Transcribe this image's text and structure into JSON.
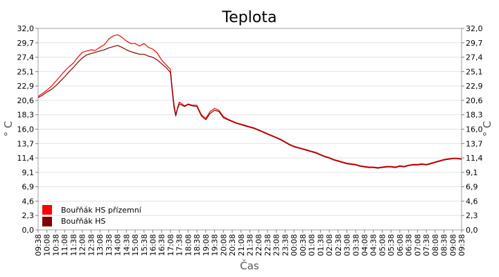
{
  "chart_data": {
    "type": "line",
    "title": "Teplota",
    "xlabel": "Čas",
    "ylabel": "° C",
    "ylim": [
      0,
      32
    ],
    "y_ticks": [
      "0,0",
      "2,3",
      "4,6",
      "6,9",
      "9,1",
      "11,4",
      "13,7",
      "16,0",
      "18,3",
      "20,6",
      "22,9",
      "25,1",
      "27,4",
      "29,7",
      "32,0"
    ],
    "x_ticks": [
      "09:38",
      "10:08",
      "10:38",
      "11:08",
      "11:38",
      "12:08",
      "12:38",
      "13:08",
      "13:38",
      "14:08",
      "14:38",
      "15:08",
      "15:38",
      "16:08",
      "16:38",
      "17:08",
      "17:38",
      "18:08",
      "18:38",
      "19:08",
      "19:38",
      "20:08",
      "20:38",
      "21:08",
      "21:38",
      "22:08",
      "22:38",
      "23:08",
      "23:38",
      "00:08",
      "00:38",
      "01:08",
      "01:38",
      "02:08",
      "02:38",
      "03:08",
      "03:38",
      "04:08",
      "04:38",
      "05:08",
      "05:38",
      "06:08",
      "06:38",
      "07:08",
      "07:38",
      "08:08",
      "08:38",
      "09:08",
      "09:38"
    ],
    "grid": true,
    "legend_position": "bottom-left",
    "series": [
      {
        "name": "Bouřňák HS přízemní",
        "color": "#ff0000",
        "x": [
          0,
          0.5,
          1,
          1.5,
          2,
          2.5,
          3,
          3.5,
          4,
          4.5,
          5,
          5.5,
          6,
          6.5,
          7,
          7.5,
          8,
          8.5,
          9,
          9.5,
          10,
          10.5,
          11,
          11.5,
          12,
          12.5,
          13,
          13.5,
          14,
          14.5,
          15,
          15.2,
          15.4,
          15.6,
          15.8,
          16,
          16.3,
          16.6,
          17,
          17.5,
          18,
          18.5,
          19,
          19.5,
          20,
          20.5,
          21,
          21.5,
          22,
          22.5,
          23,
          23.5,
          24,
          24.5,
          25,
          25.5,
          26,
          26.5,
          27,
          27.5,
          28,
          28.5,
          29,
          29.5,
          30,
          30.5,
          31,
          31.5,
          32,
          32.5,
          33,
          33.5,
          34,
          34.5,
          35,
          35.5,
          36,
          36.5,
          37,
          37.5,
          38,
          38.5,
          39,
          39.5,
          40,
          40.5,
          41,
          41.5,
          42,
          42.5,
          43,
          43.5,
          44,
          44.5,
          45,
          45.5,
          46,
          46.5,
          47,
          47.5,
          48
        ],
        "values": [
          21.2,
          21.7,
          22.2,
          22.8,
          23.6,
          24.4,
          25.2,
          25.9,
          26.5,
          27.4,
          28.2,
          28.4,
          28.6,
          28.5,
          29.0,
          29.4,
          30.3,
          30.8,
          31.0,
          30.6,
          30.0,
          29.6,
          29.6,
          29.2,
          29.6,
          29.0,
          28.7,
          28.1,
          27.0,
          26.2,
          25.5,
          22.5,
          20.0,
          18.3,
          19.4,
          20.3,
          20.0,
          19.7,
          20.0,
          19.8,
          19.8,
          18.3,
          17.7,
          18.8,
          19.3,
          19.0,
          18.0,
          17.6,
          17.3,
          17.0,
          16.8,
          16.6,
          16.4,
          16.2,
          15.9,
          15.6,
          15.3,
          15.0,
          14.7,
          14.4,
          14.0,
          13.6,
          13.3,
          13.1,
          12.9,
          12.7,
          12.5,
          12.3,
          12.0,
          11.7,
          11.5,
          11.2,
          11.0,
          10.8,
          10.6,
          10.5,
          10.4,
          10.2,
          10.1,
          10.0,
          10.0,
          9.9,
          10.0,
          10.1,
          10.1,
          10.0,
          10.2,
          10.1,
          10.3,
          10.4,
          10.4,
          10.5,
          10.4,
          10.6,
          10.8,
          11.0,
          11.2,
          11.3,
          11.4,
          11.4,
          11.3
        ]
      },
      {
        "name": "Bouřňák HS",
        "color": "#800000",
        "x": [
          0,
          0.5,
          1,
          1.5,
          2,
          2.5,
          3,
          3.5,
          4,
          4.5,
          5,
          5.5,
          6,
          6.5,
          7,
          7.5,
          8,
          8.5,
          9,
          9.5,
          10,
          10.5,
          11,
          11.5,
          12,
          12.5,
          13,
          13.5,
          14,
          14.5,
          15,
          15.2,
          15.4,
          15.6,
          15.8,
          16,
          16.3,
          16.6,
          17,
          17.5,
          18,
          18.5,
          19,
          19.5,
          20,
          20.5,
          21,
          21.5,
          22,
          22.5,
          23,
          23.5,
          24,
          24.5,
          25,
          25.5,
          26,
          26.5,
          27,
          27.5,
          28,
          28.5,
          29,
          29.5,
          30,
          30.5,
          31,
          31.5,
          32,
          32.5,
          33,
          33.5,
          34,
          34.5,
          35,
          35.5,
          36,
          36.5,
          37,
          37.5,
          38,
          38.5,
          39,
          39.5,
          40,
          40.5,
          41,
          41.5,
          42,
          42.5,
          43,
          43.5,
          44,
          44.5,
          45,
          45.5,
          46,
          46.5,
          47,
          47.5,
          48
        ],
        "values": [
          21.0,
          21.4,
          21.9,
          22.3,
          22.9,
          23.6,
          24.3,
          25.1,
          25.8,
          26.6,
          27.3,
          27.8,
          28.0,
          28.2,
          28.4,
          28.6,
          28.9,
          29.1,
          29.3,
          29.0,
          28.6,
          28.3,
          28.1,
          27.9,
          27.9,
          27.6,
          27.4,
          27.0,
          26.4,
          25.8,
          25.0,
          22.0,
          19.5,
          18.1,
          19.2,
          20.0,
          19.8,
          19.6,
          19.9,
          19.7,
          19.6,
          18.1,
          17.5,
          18.5,
          19.0,
          18.8,
          17.8,
          17.5,
          17.2,
          16.9,
          16.7,
          16.5,
          16.3,
          16.1,
          15.8,
          15.5,
          15.2,
          14.9,
          14.6,
          14.3,
          13.9,
          13.5,
          13.2,
          13.0,
          12.8,
          12.6,
          12.4,
          12.2,
          11.9,
          11.6,
          11.4,
          11.1,
          10.9,
          10.7,
          10.5,
          10.4,
          10.3,
          10.1,
          10.0,
          9.9,
          9.9,
          9.8,
          9.9,
          10.0,
          10.0,
          9.9,
          10.1,
          10.0,
          10.2,
          10.3,
          10.3,
          10.4,
          10.3,
          10.5,
          10.7,
          10.9,
          11.1,
          11.2,
          11.3,
          11.3,
          11.2
        ]
      }
    ]
  }
}
